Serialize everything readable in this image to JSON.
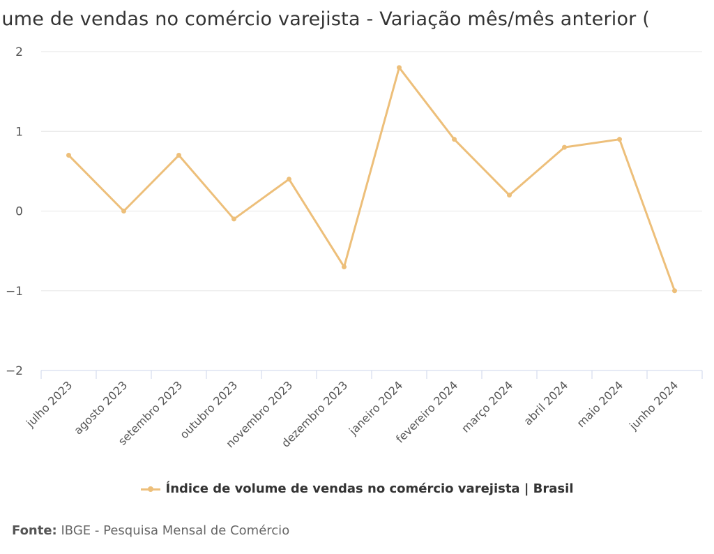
{
  "chart_data": {
    "type": "line",
    "title": "olume de vendas no comércio varejista - Variação mês/mês anterior (",
    "categories": [
      "julho 2023",
      "agosto 2023",
      "setembro 2023",
      "outubro 2023",
      "novembro 2023",
      "dezembro 2023",
      "janeiro 2024",
      "fevereiro 2024",
      "março 2024",
      "abril 2024",
      "maio 2024",
      "junho 2024"
    ],
    "series": [
      {
        "name": "Índice de volume de vendas no comércio varejista | Brasil",
        "values": [
          0.7,
          0.0,
          0.7,
          -0.1,
          0.4,
          -0.7,
          1.8,
          0.9,
          0.2,
          0.8,
          0.9,
          -1.0
        ],
        "color": "#edbf7a"
      }
    ],
    "yticks": [
      "2",
      "1",
      "0",
      "−1",
      "−2"
    ],
    "ylim": [
      -2,
      2
    ],
    "grid": true,
    "legend": "bottom-center"
  },
  "source": {
    "label": "Fonte:",
    "text": "IBGE - Pesquisa Mensal de Comércio"
  }
}
